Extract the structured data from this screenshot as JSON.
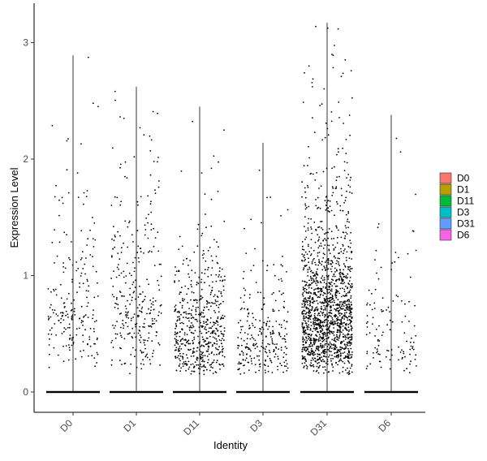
{
  "chart_data": {
    "type": "scatter",
    "subtype": "violin-jitter",
    "title": "",
    "xlabel": "Identity",
    "ylabel": "Expression Level",
    "categories": [
      "D0",
      "D1",
      "D11",
      "D3",
      "D31",
      "D6"
    ],
    "ylim": [
      -0.15,
      3.28
    ],
    "yticks": [
      "0",
      "1",
      "2",
      "3"
    ],
    "ytick_values": [
      0,
      1,
      2,
      3
    ],
    "grid": false,
    "legend": {
      "position": "right",
      "items": [
        {
          "label": "D0",
          "color": "#F8766D"
        },
        {
          "label": "D1",
          "color": "#B79F00"
        },
        {
          "label": "D11",
          "color": "#00BA38"
        },
        {
          "label": "D3",
          "color": "#00BFC4"
        },
        {
          "label": "D31",
          "color": "#619CFF"
        },
        {
          "label": "D6",
          "color": "#F564E3"
        }
      ]
    },
    "series": [
      {
        "category": "D0",
        "max": 2.89,
        "nonzero_points": 210,
        "nonzero_median": 0.75
      },
      {
        "category": "D1",
        "max": 2.62,
        "nonzero_points": 300,
        "nonzero_median": 0.75
      },
      {
        "category": "D11",
        "max": 2.45,
        "nonzero_points": 560,
        "nonzero_median": 0.5
      },
      {
        "category": "D3",
        "max": 2.14,
        "nonzero_points": 260,
        "nonzero_median": 0.45
      },
      {
        "category": "D31",
        "max": 3.17,
        "nonzero_points": 1500,
        "nonzero_median": 0.7
      },
      {
        "category": "D6",
        "max": 2.38,
        "nonzero_points": 120,
        "nonzero_median": 0.55
      }
    ],
    "point_color": "#000000",
    "zero_value": 0
  }
}
